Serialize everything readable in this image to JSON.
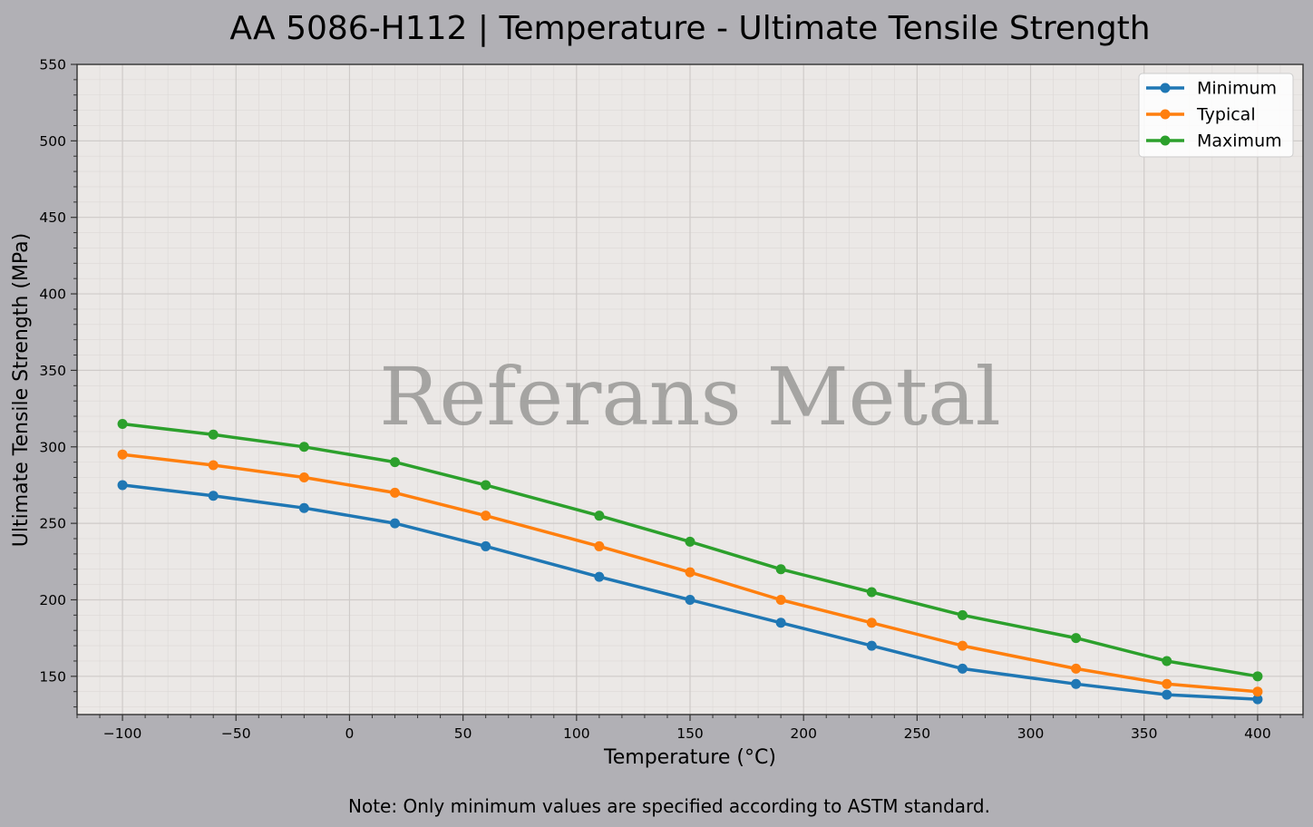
{
  "chart_data": {
    "type": "line",
    "title": "AA 5086-H112 | Temperature - Ultimate Tensile Strength",
    "xlabel": "Temperature (°C)",
    "ylabel": "Ultimate Tensile Strength (MPa)",
    "note": "Note: Only minimum values are specified according to ASTM standard.",
    "watermark": "Referans Metal",
    "xlim": [
      -120,
      420
    ],
    "ylim": [
      125,
      550
    ],
    "xticks": [
      -100,
      -50,
      0,
      50,
      100,
      150,
      200,
      250,
      300,
      350,
      400
    ],
    "xtick_labels": [
      "−100",
      "−50",
      "0",
      "50",
      "100",
      "150",
      "200",
      "250",
      "300",
      "350",
      "400"
    ],
    "yticks": [
      150,
      200,
      250,
      300,
      350,
      400,
      450,
      500,
      550
    ],
    "ytick_labels": [
      "150",
      "200",
      "250",
      "300",
      "350",
      "400",
      "450",
      "500",
      "550"
    ],
    "grid": true,
    "legend_position": "top-right",
    "x": [
      -100,
      -60,
      -20,
      20,
      60,
      110,
      150,
      190,
      230,
      270,
      320,
      360,
      400
    ],
    "series": [
      {
        "name": "Minimum",
        "color": "#1f77b4",
        "values": [
          275,
          268,
          260,
          250,
          235,
          215,
          200,
          185,
          170,
          155,
          145,
          138,
          135
        ]
      },
      {
        "name": "Typical",
        "color": "#ff7f0e",
        "values": [
          295,
          288,
          280,
          270,
          255,
          235,
          218,
          200,
          185,
          170,
          155,
          145,
          140
        ]
      },
      {
        "name": "Maximum",
        "color": "#2ca02c",
        "values": [
          315,
          308,
          300,
          290,
          275,
          255,
          238,
          220,
          205,
          190,
          175,
          160,
          150
        ]
      }
    ]
  }
}
